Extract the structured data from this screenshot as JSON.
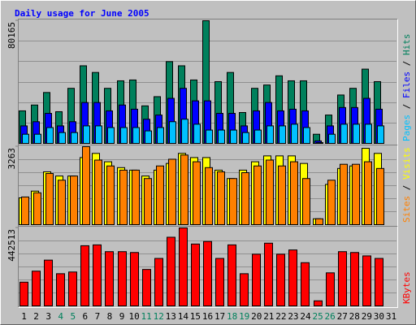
{
  "chart_data": [
    {
      "type": "bar",
      "title": "Daily usage for June 2005",
      "ylim": [
        0,
        80165
      ],
      "yticks": [
        80165
      ],
      "legend_separator": " / ",
      "series": [
        {
          "name": "Hits",
          "color": "#00805c",
          "values": [
            21270,
            25090,
            33270,
            20720,
            35990,
            50720,
            46360,
            35990,
            40900,
            41450,
            24540,
            30540,
            53440,
            50720,
            41450,
            80165,
            40360,
            46360,
            20180,
            35990,
            38170,
            44170,
            40900,
            40900,
            6000,
            18540,
            31630,
            35990,
            48540,
            40360,
            null
          ]
        },
        {
          "name": "Files",
          "color": "#0000ff",
          "values": [
            11450,
            14180,
            19630,
            11450,
            14180,
            26720,
            26720,
            21270,
            25090,
            22360,
            15810,
            18540,
            29450,
            35990,
            27810,
            27810,
            19630,
            19630,
            11450,
            21270,
            26720,
            21270,
            22360,
            21270,
            1640,
            11450,
            23450,
            23450,
            29450,
            22360,
            null
          ]
        },
        {
          "name": "Pages",
          "color": "#00c0ff",
          "values": [
            6000,
            6000,
            10360,
            7090,
            7090,
            11450,
            11450,
            10360,
            10360,
            10360,
            8180,
            10360,
            14180,
            15810,
            12540,
            8720,
            8720,
            8720,
            7090,
            8720,
            11450,
            11450,
            12540,
            10360,
            550,
            6000,
            12540,
            12540,
            12540,
            11450,
            null
          ]
        }
      ]
    },
    {
      "type": "bar",
      "ylim": [
        0,
        3263
      ],
      "yticks": [
        3263
      ],
      "legend_separator": " / ",
      "series": [
        {
          "name": "Visits",
          "color": "#ffff00",
          "values": [
            1123,
            1403,
            2210,
            2035,
            2035,
            2807,
            2982,
            2631,
            2386,
            2281,
            2035,
            2281,
            2561,
            2982,
            2807,
            2807,
            2281,
            1930,
            2281,
            2631,
            2877,
            2877,
            2877,
            2561,
            246,
            1684,
            2351,
            2456,
            3193,
            2982,
            null
          ]
        },
        {
          "name": "Sites",
          "color": "#ff8000",
          "values": [
            1158,
            1333,
            2140,
            1860,
            2035,
            3263,
            2702,
            2456,
            2281,
            2281,
            1930,
            2456,
            2737,
            2912,
            2631,
            2386,
            2210,
            1930,
            2175,
            2456,
            2702,
            2456,
            2631,
            1930,
            246,
            1860,
            2526,
            2526,
            2631,
            2351,
            null
          ]
        }
      ]
    },
    {
      "type": "bar",
      "ylim": [
        0,
        442513
      ],
      "yticks": [
        442513
      ],
      "categories": [
        "1",
        "2",
        "3",
        "4",
        "5",
        "6",
        "7",
        "8",
        "9",
        "10",
        "11",
        "12",
        "13",
        "14",
        "15",
        "16",
        "17",
        "18",
        "19",
        "20",
        "21",
        "22",
        "23",
        "24",
        "25",
        "26",
        "27",
        "28",
        "29",
        "30",
        "31"
      ],
      "category_colors": [
        "#000000",
        "#000000",
        "#000000",
        "#00805c",
        "#00805c",
        "#000000",
        "#000000",
        "#000000",
        "#000000",
        "#000000",
        "#00805c",
        "#00805c",
        "#000000",
        "#000000",
        "#000000",
        "#000000",
        "#000000",
        "#00805c",
        "#00805c",
        "#000000",
        "#000000",
        "#000000",
        "#000000",
        "#000000",
        "#00805c",
        "#00805c",
        "#000000",
        "#000000",
        "#000000",
        "#000000",
        "#000000"
      ],
      "series": [
        {
          "name": "KBytes",
          "color": "#ff0000",
          "values": [
            134680,
            197210,
            259740,
            182780,
            192400,
            341500,
            346310,
            307840,
            307840,
            303030,
            206830,
            269360,
            389610,
            442513,
            351120,
            365560,
            269360,
            346310,
            182780,
            293410,
            355930,
            293410,
            317460,
            245310,
            28860,
            187590,
            307840,
            303030,
            283790,
            269360,
            null
          ]
        }
      ]
    }
  ]
}
